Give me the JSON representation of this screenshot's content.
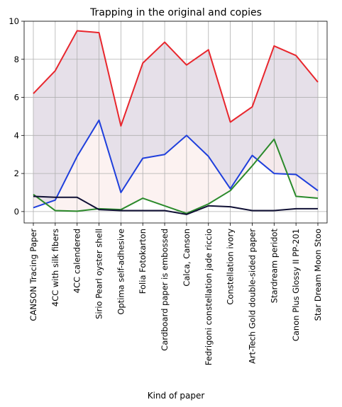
{
  "chart_data": {
    "type": "line",
    "title": "Trapping in the original and copies",
    "xlabel": "Kind of paper",
    "ylabel": "",
    "ylim": [
      -0.6,
      10
    ],
    "yticks": [
      0,
      2,
      4,
      6,
      8,
      10
    ],
    "grid": true,
    "categories": [
      "CANSON Tracing Paper",
      "4CC with silk fibers",
      "4CC calendered",
      "Sirio Pearl oyster shell",
      "Optima self-adhesive",
      "Folia Fotokarton",
      "Cardboard paper is embossed",
      "Calca, Canson",
      "Fedrigoni constellation jade riccio",
      "Constellation ivory",
      "Art-Tech Gold double-sided paper",
      "Stardream peridot",
      "Canon Plus Glossy II PP-201",
      "Star Dream Moon Stoo"
    ],
    "series": [
      {
        "color": "#e8262d",
        "values": [
          6.2,
          7.4,
          9.5,
          9.4,
          4.5,
          7.8,
          8.9,
          7.7,
          8.5,
          4.7,
          5.5,
          8.7,
          8.2,
          6.8
        ]
      },
      {
        "color": "#1f3fdc",
        "values": [
          0.2,
          0.6,
          2.9,
          4.8,
          1.0,
          2.8,
          3.0,
          4.0,
          2.9,
          1.2,
          2.95,
          2.0,
          1.95,
          1.1
        ]
      },
      {
        "color": "#2b8a2b",
        "values": [
          0.9,
          0.05,
          0.02,
          0.15,
          0.1,
          0.7,
          0.3,
          -0.1,
          0.4,
          1.1,
          2.4,
          3.8,
          0.8,
          0.7
        ]
      },
      {
        "color": "#101035",
        "values": [
          0.8,
          0.75,
          0.75,
          0.1,
          0.05,
          0.05,
          0.05,
          -0.15,
          0.3,
          0.25,
          0.05,
          0.05,
          0.15,
          0.15
        ]
      }
    ],
    "fills": [
      {
        "between": [
          0,
          1
        ],
        "color": "#ddd6e2"
      },
      {
        "between": [
          1,
          2
        ],
        "color": "#fbeeec"
      }
    ]
  }
}
